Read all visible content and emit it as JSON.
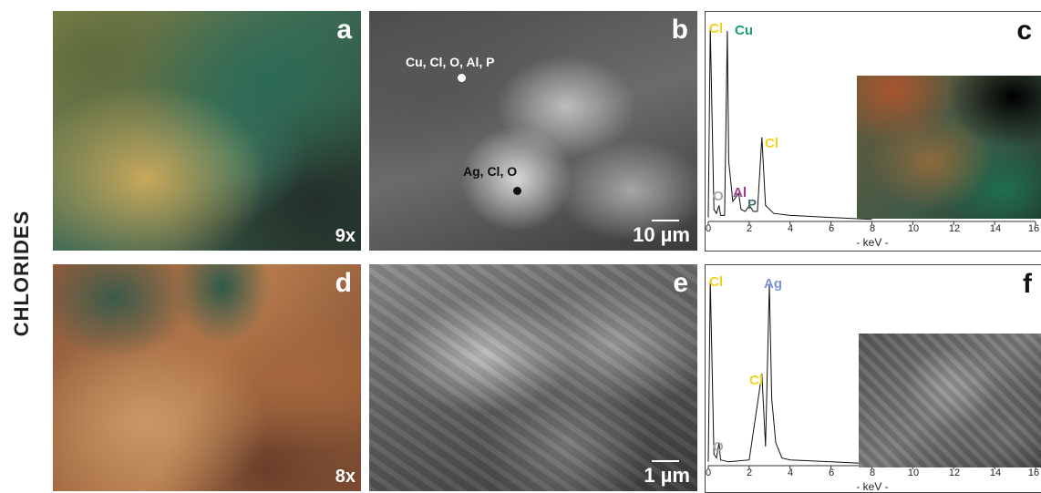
{
  "figure": {
    "side_label": "CHLORIDES",
    "panel_a": {
      "label": "a",
      "magnification": "9x"
    },
    "panel_b": {
      "label": "b",
      "scale_bar": "10 µm",
      "point1": {
        "text": "Cu, Cl, O, Al, P"
      },
      "point2": {
        "text": "Ag, Cl, O"
      }
    },
    "panel_c": {
      "label": "c",
      "xlabel": "- keV -",
      "peak_labels": [
        {
          "text": "Cl",
          "color": "#f2d21b"
        },
        {
          "text": "Cu",
          "color": "#1a9e6a"
        },
        {
          "text": "Cl",
          "color": "#f2d21b"
        },
        {
          "text": "O",
          "color": "#aaaaaa"
        },
        {
          "text": "Al",
          "color": "#a23b8c"
        },
        {
          "text": "P",
          "color": "#4a6f6f"
        }
      ]
    },
    "panel_d": {
      "label": "d",
      "magnification": "8x"
    },
    "panel_e": {
      "label": "e",
      "scale_bar": "1 µm"
    },
    "panel_f": {
      "label": "f",
      "xlabel": "- keV -",
      "peak_labels": [
        {
          "text": "Cl",
          "color": "#f2d21b"
        },
        {
          "text": "Ag",
          "color": "#7a93d6"
        },
        {
          "text": "Cl",
          "color": "#f2d21b"
        },
        {
          "text": "O",
          "color": "#aaaaaa"
        }
      ]
    },
    "ticks": [
      "0",
      "2",
      "4",
      "6",
      "8",
      "10",
      "12",
      "14",
      "16"
    ]
  },
  "chart_data": [
    {
      "type": "line",
      "panel": "c",
      "xlabel": "- keV -",
      "xlim": [
        0,
        16
      ],
      "x": [
        0.0,
        0.1,
        0.277,
        0.4,
        0.525,
        0.6,
        0.8,
        0.93,
        1.0,
        1.2,
        1.486,
        1.6,
        1.8,
        2.013,
        2.2,
        2.4,
        2.622,
        2.8,
        3.2,
        4.0,
        6.0,
        8.0
      ],
      "series": [
        {
          "values": [
            2,
            97,
            6,
            4,
            8,
            3,
            3,
            95,
            30,
            10,
            14,
            6,
            5,
            8,
            5,
            5,
            42,
            8,
            4,
            3,
            2,
            1
          ]
        }
      ]
    },
    {
      "type": "line",
      "panel": "f",
      "xlabel": "- keV -",
      "xlim": [
        0,
        16
      ],
      "x": [
        0.0,
        0.1,
        0.277,
        0.4,
        0.525,
        0.6,
        1.0,
        2.0,
        2.622,
        2.8,
        2.984,
        3.1,
        3.3,
        3.6,
        4.0,
        6.0,
        8.0,
        10.0
      ],
      "series": [
        {
          "values": [
            2,
            97,
            6,
            4,
            12,
            3,
            2,
            3,
            48,
            10,
            95,
            35,
            12,
            4,
            3,
            2,
            1,
            1
          ]
        }
      ]
    }
  ]
}
